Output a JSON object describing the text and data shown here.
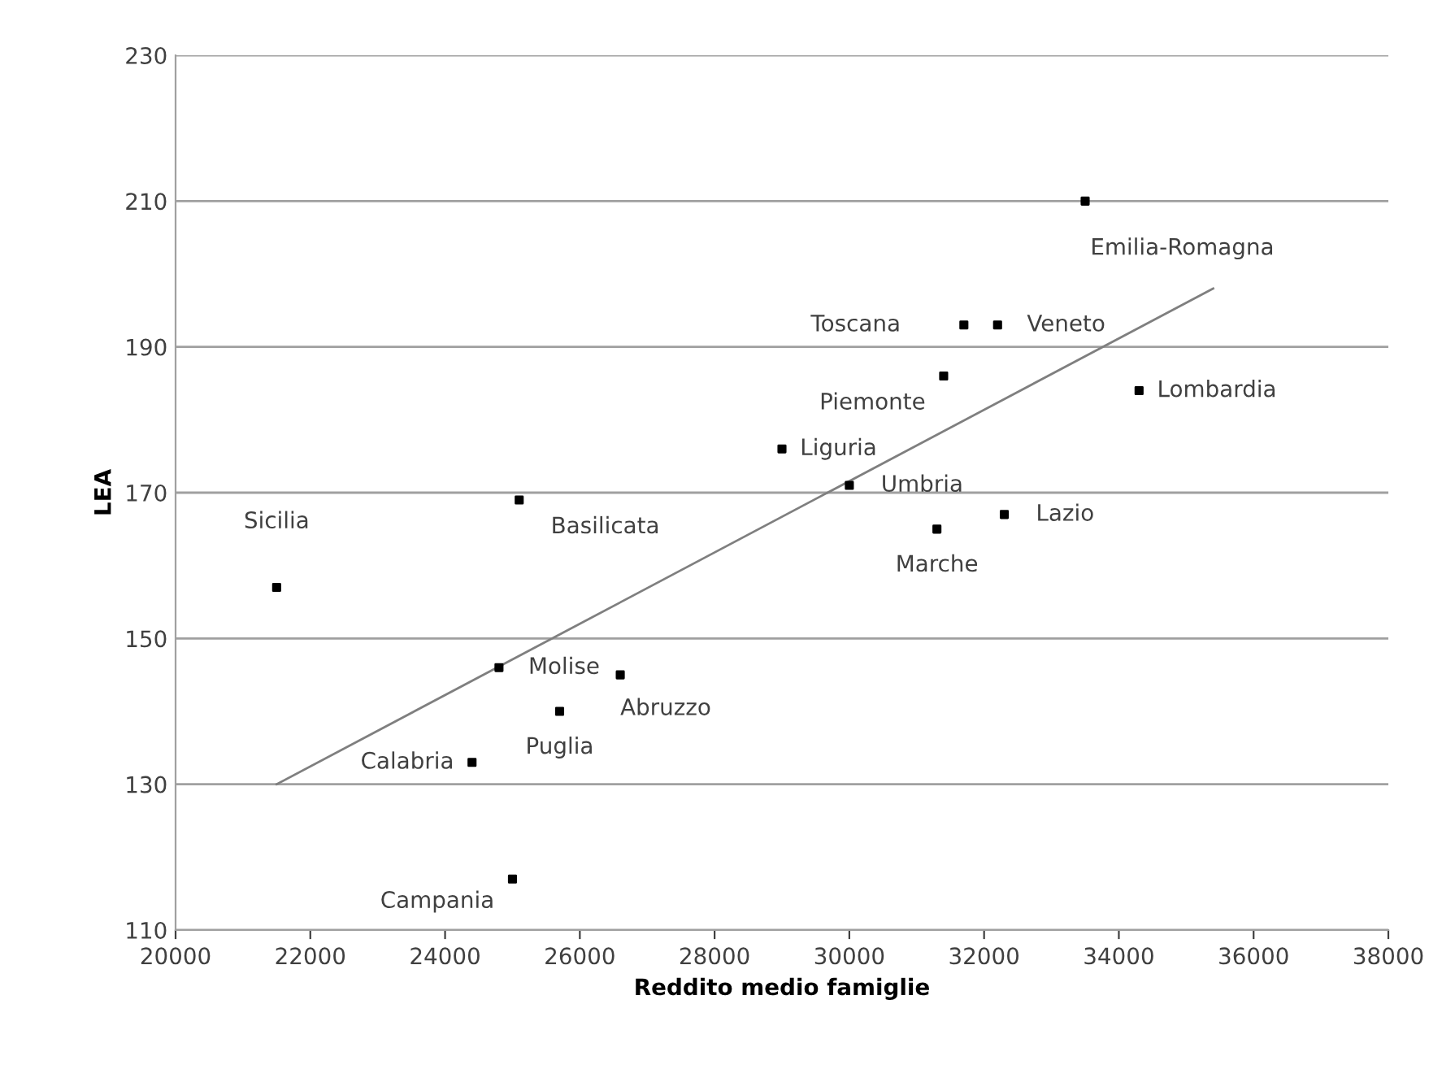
{
  "chart_data": {
    "type": "scatter",
    "xlabel": "Reddito medio famiglie",
    "ylabel": "LEA",
    "x": [
      21500,
      25100,
      24800,
      26600,
      25700,
      24400,
      25000,
      29000,
      30000,
      32300,
      31300,
      31400,
      31700,
      32200,
      34300,
      33500
    ],
    "series": [
      {
        "color": "#000000",
        "values": [
          157,
          169,
          146,
          145,
          140,
          133,
          117,
          176,
          171,
          167,
          165,
          186,
          193,
          193,
          184,
          210
        ]
      },
      {
        "type": "line",
        "marker": "none",
        "color": "#7f7f7f",
        "x": [
          21500,
          35400
        ],
        "values": [
          130,
          198
        ]
      }
    ],
    "annotations": [
      {
        "text": "Sicilia",
        "x": 21500,
        "y": 157
      },
      {
        "text": "Basilicata",
        "x": 25100,
        "y": 169
      },
      {
        "text": "Molise",
        "x": 24800,
        "y": 146
      },
      {
        "text": "Abruzzo",
        "x": 26600,
        "y": 145
      },
      {
        "text": "Puglia",
        "x": 25700,
        "y": 140
      },
      {
        "text": "Calabria",
        "x": 24400,
        "y": 133
      },
      {
        "text": "Campania",
        "x": 25000,
        "y": 117
      },
      {
        "text": "Liguria",
        "x": 29000,
        "y": 176
      },
      {
        "text": "Umbria",
        "x": 30000,
        "y": 171
      },
      {
        "text": "Lazio",
        "x": 32300,
        "y": 167
      },
      {
        "text": "Marche",
        "x": 31300,
        "y": 165
      },
      {
        "text": "Piemonte",
        "x": 31400,
        "y": 186
      },
      {
        "text": "Toscana",
        "x": 31700,
        "y": 193
      },
      {
        "text": "Veneto",
        "x": 32200,
        "y": 193
      },
      {
        "text": "Lombardia",
        "x": 34300,
        "y": 184
      },
      {
        "text": "Emilia-Romagna",
        "x": 33500,
        "y": 210
      }
    ],
    "xlim": [
      20000,
      38000
    ],
    "xticks": [
      20000,
      22000,
      24000,
      26000,
      28000,
      30000,
      32000,
      34000,
      36000,
      38000
    ],
    "ylim": [
      110,
      230
    ],
    "yticks": [
      110,
      130,
      150,
      170,
      190,
      210,
      230
    ],
    "grid": "y",
    "marker": "square",
    "legend": false
  }
}
